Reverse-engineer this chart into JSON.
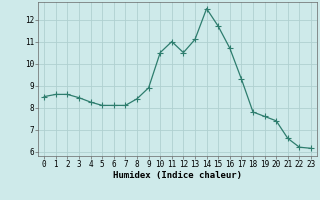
{
  "x": [
    0,
    1,
    2,
    3,
    4,
    5,
    6,
    7,
    8,
    9,
    10,
    11,
    12,
    13,
    14,
    15,
    16,
    17,
    18,
    19,
    20,
    21,
    22,
    23
  ],
  "y": [
    8.5,
    8.6,
    8.6,
    8.45,
    8.25,
    8.1,
    8.1,
    8.1,
    8.4,
    8.9,
    10.5,
    11.0,
    10.5,
    11.1,
    12.5,
    11.7,
    10.7,
    9.3,
    7.8,
    7.6,
    7.4,
    6.6,
    6.2,
    6.15
  ],
  "line_color": "#2e7d6e",
  "marker": "D",
  "marker_size": 2.0,
  "bg_color": "#ceeaea",
  "grid_color": "#b0d0d0",
  "xlabel": "Humidex (Indice chaleur)",
  "xlim": [
    -0.5,
    23.5
  ],
  "ylim": [
    5.8,
    12.8
  ],
  "yticks": [
    6,
    7,
    8,
    9,
    10,
    11,
    12
  ],
  "xticks": [
    0,
    1,
    2,
    3,
    4,
    5,
    6,
    7,
    8,
    9,
    10,
    11,
    12,
    13,
    14,
    15,
    16,
    17,
    18,
    19,
    20,
    21,
    22,
    23
  ],
  "tick_fontsize": 5.5,
  "xlabel_fontsize": 6.5,
  "ylabel_fontsize": 6.5
}
